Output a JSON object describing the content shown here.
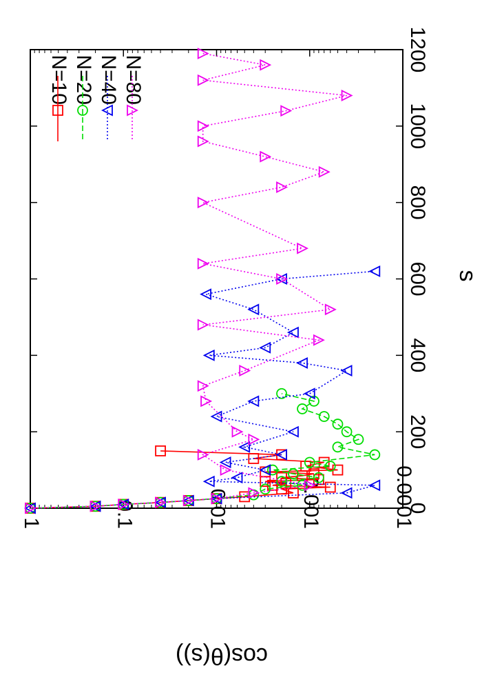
{
  "chart_data": {
    "type": "scatter",
    "orientation": "rotated-90-clockwise",
    "xlabel": "s",
    "ylabel": "cos(θ(s))",
    "xlim": [
      0,
      1200
    ],
    "ylim": [
      0.0001,
      1
    ],
    "yscale": "log",
    "x_ticks": [
      "0",
      "200",
      "400",
      "600",
      "800",
      "1000",
      "1200"
    ],
    "y_ticks": [
      "1",
      "0.1",
      "0.01",
      "0.001",
      "0.0001"
    ],
    "grid": false,
    "legend_position": "top-right",
    "series": [
      {
        "name": "N=10",
        "color": "#ff0000",
        "marker": "square",
        "line": "solid",
        "x": [
          0,
          5,
          10,
          15,
          20,
          25,
          30,
          40,
          50,
          55,
          60,
          65,
          70,
          75,
          80,
          85,
          90,
          95,
          100,
          110,
          120,
          130,
          140,
          150
        ],
        "y": [
          1,
          0.2,
          0.1,
          0.04,
          0.02,
          0.01,
          0.005,
          0.0015,
          0.002,
          0.0006,
          0.0025,
          0.0018,
          0.003,
          0.0008,
          0.002,
          0.0012,
          0.0009,
          0.003,
          0.0005,
          0.0011,
          0.0007,
          0.004,
          0.002,
          0.04
        ]
      },
      {
        "name": "N=20",
        "color": "#00dd00",
        "marker": "circle",
        "line": "dashed",
        "x": [
          0,
          5,
          10,
          15,
          20,
          25,
          35,
          50,
          60,
          70,
          80,
          90,
          100,
          110,
          120,
          140,
          160,
          180,
          200,
          220,
          240,
          260,
          280,
          300
        ],
        "y": [
          1,
          0.2,
          0.1,
          0.04,
          0.02,
          0.01,
          0.004,
          0.003,
          0.0012,
          0.002,
          0.0008,
          0.0015,
          0.0025,
          0.0006,
          0.001,
          0.0002,
          0.0005,
          0.0003,
          0.0004,
          0.0005,
          0.0007,
          0.0012,
          0.0009,
          0.002
        ]
      },
      {
        "name": "N=40",
        "color": "#0000ee",
        "marker": "triangle-left",
        "line": "dotted",
        "x": [
          0,
          5,
          10,
          15,
          20,
          25,
          40,
          60,
          70,
          80,
          100,
          120,
          140,
          160,
          200,
          240,
          280,
          300,
          360,
          380,
          400,
          420,
          460,
          520,
          560,
          600,
          620
        ],
        "y": [
          1,
          0.2,
          0.1,
          0.04,
          0.02,
          0.01,
          0.0004,
          0.0002,
          0.012,
          0.006,
          0.003,
          0.008,
          0.002,
          0.005,
          0.0015,
          0.01,
          0.004,
          0.001,
          0.0004,
          0.0012,
          0.012,
          0.003,
          0.0015,
          0.004,
          0.013,
          0.002,
          0.0002
        ]
      },
      {
        "name": "N=80",
        "color": "#ee00ee",
        "marker": "triangle-right",
        "line": "dotted",
        "x": [
          0,
          5,
          10,
          15,
          20,
          25,
          40,
          60,
          100,
          140,
          180,
          200,
          280,
          320,
          360,
          440,
          480,
          520,
          600,
          640,
          680,
          800,
          840,
          880,
          920,
          960,
          1000,
          1040,
          1080,
          1120,
          1160,
          1190
        ],
        "y": [
          1,
          0.2,
          0.1,
          0.04,
          0.02,
          0.01,
          0.004,
          0.001,
          0.008,
          0.014,
          0.004,
          0.006,
          0.013,
          0.014,
          0.005,
          0.0008,
          0.014,
          0.0006,
          0.002,
          0.014,
          0.0012,
          0.014,
          0.002,
          0.0007,
          0.003,
          0.014,
          0.014,
          0.0018,
          0.0004,
          0.014,
          0.003,
          0.014
        ]
      }
    ]
  }
}
